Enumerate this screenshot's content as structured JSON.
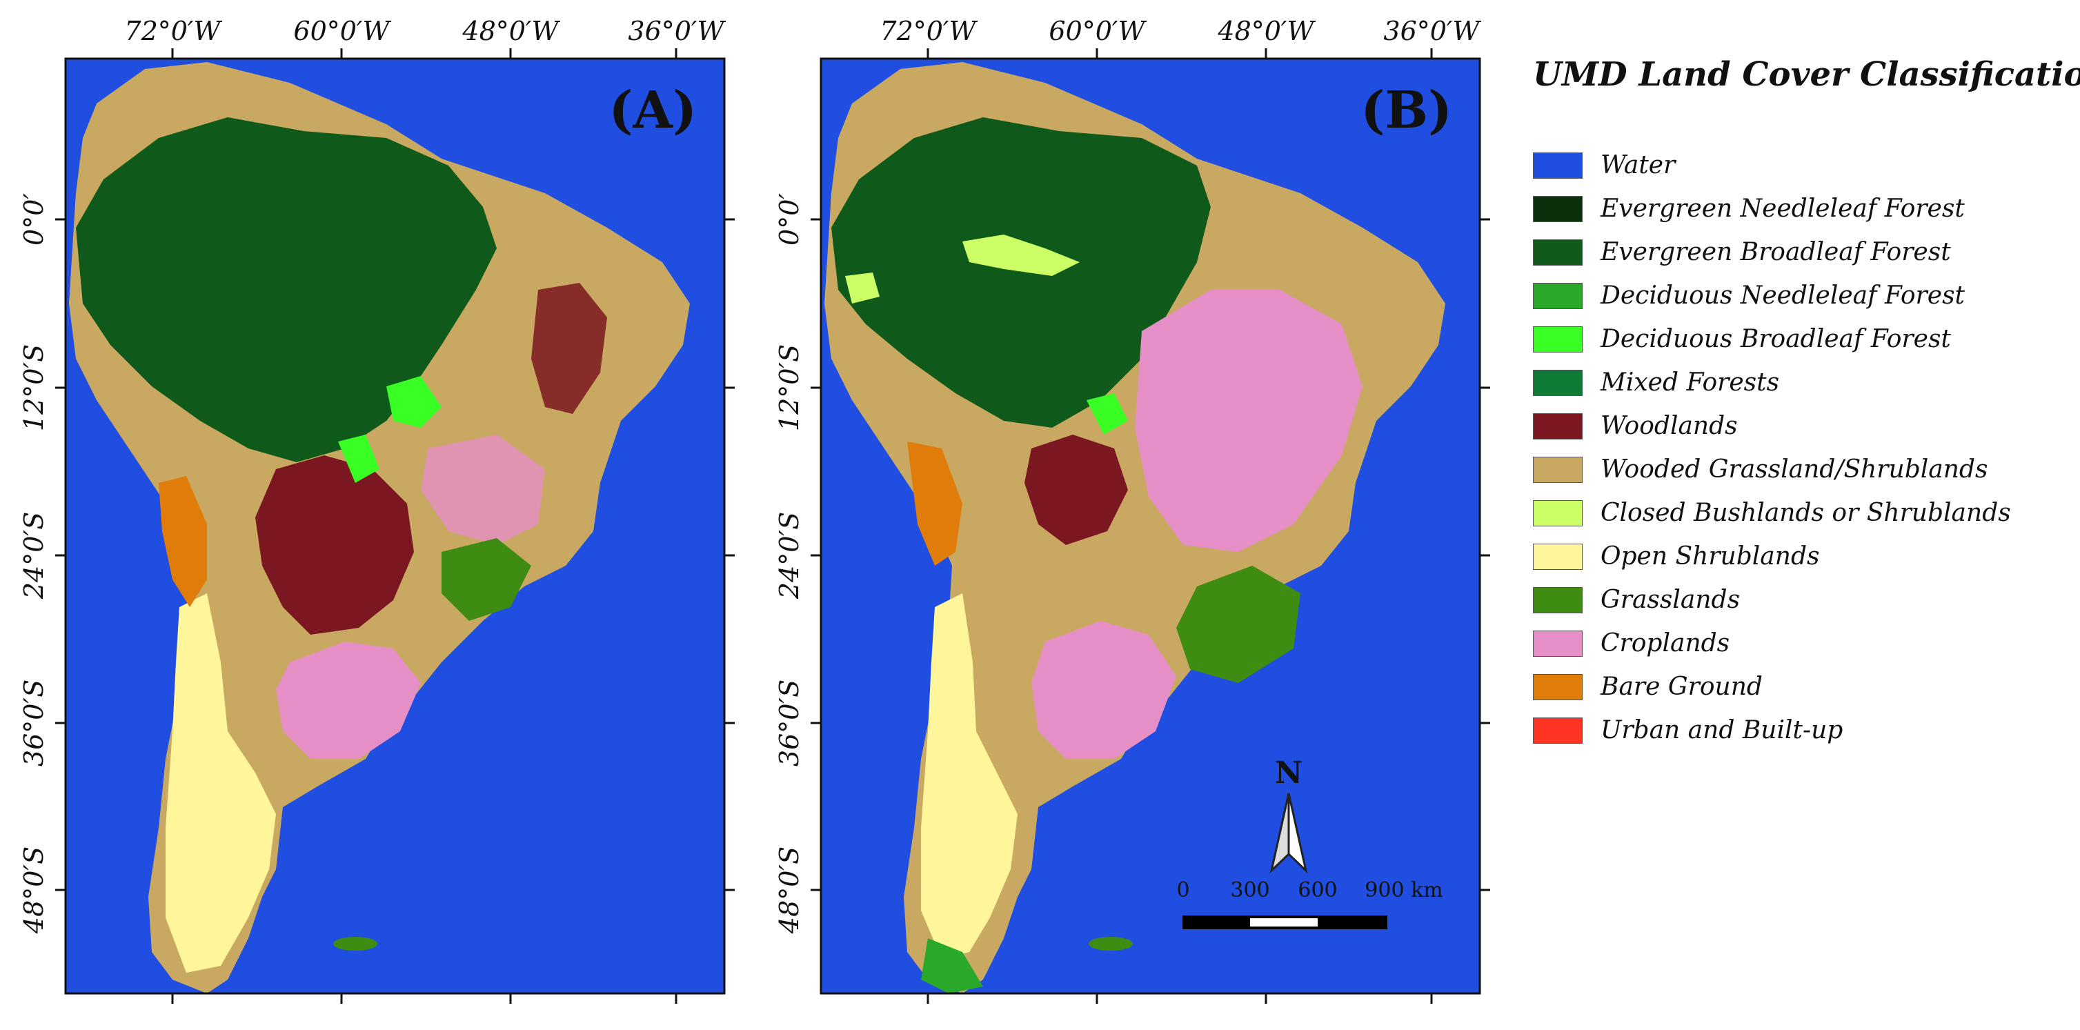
{
  "maps": [
    {
      "label": "(A)",
      "lon_labels": [
        "72°0′W",
        "60°0′W",
        "48°0′W",
        "36°0′W"
      ],
      "lat_labels": [
        "0°0′",
        "12°0′S",
        "24°0′S",
        "36°0′S",
        "48°0′S"
      ]
    },
    {
      "label": "(B)",
      "lon_labels": [
        "72°0′W",
        "60°0′W",
        "48°0′W",
        "36°0′W"
      ],
      "lat_labels": [
        "0°0′",
        "12°0′S",
        "24°0′S",
        "36°0′S",
        "48°0′S"
      ]
    }
  ],
  "legend": {
    "title": "UMD Land Cover Classification",
    "items": [
      {
        "label": "Water",
        "color": "#1f4ee0"
      },
      {
        "label": "Evergreen Needleleaf Forest",
        "color": "#0a2f0a"
      },
      {
        "label": "Evergreen Broadleaf Forest",
        "color": "#0f5a1a"
      },
      {
        "label": "Deciduous Needleleaf Forest",
        "color": "#2aa82a"
      },
      {
        "label": "Deciduous Broadleaf Forest",
        "color": "#39ff24"
      },
      {
        "label": "Mixed Forests",
        "color": "#0d7a35"
      },
      {
        "label": "Woodlands",
        "color": "#7b1720"
      },
      {
        "label": "Wooded Grassland/Shrublands",
        "color": "#c9a961"
      },
      {
        "label": "Closed Bushlands or Shrublands",
        "color": "#ccff66"
      },
      {
        "label": "Open Shrublands",
        "color": "#fff59a"
      },
      {
        "label": "Grasslands",
        "color": "#3f8c12"
      },
      {
        "label": "Croplands",
        "color": "#e68fc6"
      },
      {
        "label": "Bare Ground",
        "color": "#e07c0a"
      },
      {
        "label": "Urban and Built-up",
        "color": "#ff3322"
      }
    ]
  },
  "scale_bar": {
    "tick_labels": [
      "0",
      "300",
      "600",
      "900 km"
    ]
  },
  "north_arrow": {
    "label": "N"
  }
}
